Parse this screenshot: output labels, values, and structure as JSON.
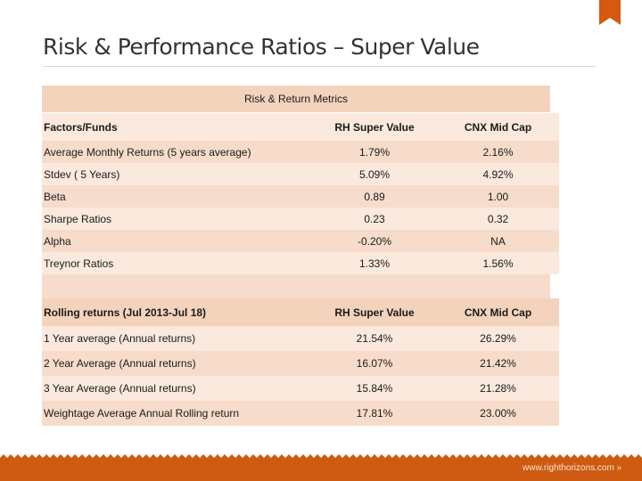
{
  "header": {
    "title": "Risk & Performance Ratios – Super Value"
  },
  "metrics": {
    "caption": "Risk & Return Metrics",
    "columns": [
      "Factors/Funds",
      "RH Super Value",
      "CNX Mid Cap"
    ],
    "rows": [
      [
        "Average Monthly Returns (5 years average)",
        "1.79%",
        "2.16%"
      ],
      [
        "Stdev ( 5 Years)",
        "5.09%",
        "4.92%"
      ],
      [
        "Beta",
        "0.89",
        "1.00"
      ],
      [
        "Sharpe Ratios",
        "0.23",
        "0.32"
      ],
      [
        "Alpha",
        "-0.20%",
        "NA"
      ],
      [
        "Treynor Ratios",
        "1.33%",
        "1.56%"
      ]
    ]
  },
  "rolling": {
    "columns": [
      "Rolling returns (Jul 2013-Jul 18)",
      "RH Super Value",
      "CNX Mid Cap"
    ],
    "rows": [
      [
        "1 Year average (Annual returns)",
        "21.54%",
        "26.29%"
      ],
      [
        "2 Year Average (Annual returns)",
        "16.07%",
        "21.42%"
      ],
      [
        "3 Year Average (Annual returns)",
        "15.84%",
        "21.28%"
      ],
      [
        "Weightage Average Annual Rolling return",
        "17.81%",
        "23.00%"
      ]
    ]
  },
  "footer": {
    "url": "www.righthorizons.com »"
  }
}
